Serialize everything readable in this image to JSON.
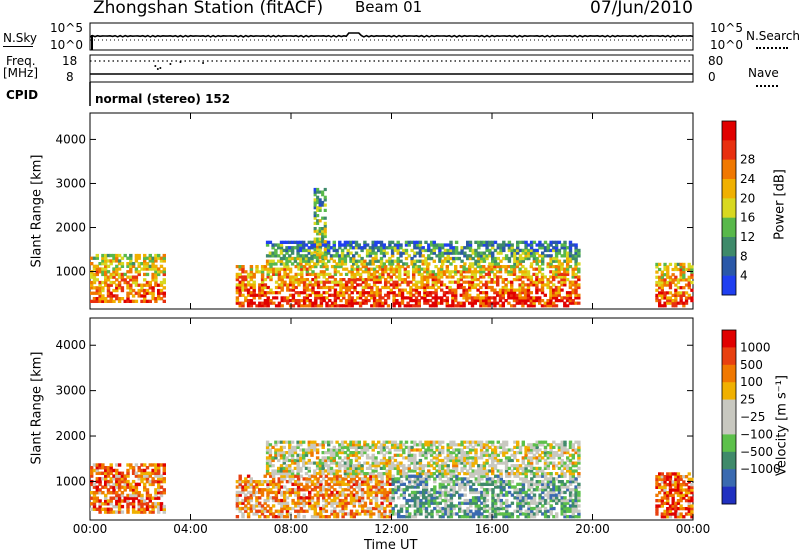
{
  "header": {
    "station": "Zhongshan Station (fitACF)",
    "beam": "Beam 01",
    "date": "07/Jun/2010"
  },
  "top_panels": {
    "nsky_label": "N.Sky",
    "nsky_ticks": [
      "10^5",
      "10^0"
    ],
    "nsearch_label": "N.Search",
    "nsearch_ticks": [
      "10^5",
      "10^0"
    ],
    "freq_label": "Freq.",
    "freq_unit": "[MHz]",
    "freq_ticks": [
      "18",
      "8"
    ],
    "nave_label": "Nave",
    "nave_ticks": [
      "80",
      "0"
    ],
    "cpid_label": "CPID",
    "cpid_text": "normal (stereo) 152"
  },
  "colors": {
    "power_scale": [
      "#1f3ff0",
      "#2a58a8",
      "#3e8a6a",
      "#58b84a",
      "#d8d820",
      "#f0b000",
      "#f07800",
      "#e83010",
      "#e00000"
    ],
    "velocity_scale": [
      "#2030c0",
      "#3a6ab0",
      "#3f8a6a",
      "#5cc04a",
      "#c8c8c0",
      "#c8c8c0",
      "#f0b000",
      "#f07800",
      "#e84010",
      "#e00000"
    ]
  },
  "chart_data": [
    {
      "type": "heatmap",
      "title": "",
      "xlabel": "",
      "ylabel": "Slant Range [km]",
      "ylim": [
        150,
        4600
      ],
      "y_ticks": [
        "1000",
        "2000",
        "3000",
        "4000"
      ],
      "x_ticks": [],
      "colorbar_label": "Power [dB]",
      "colorbar_ticks": [
        "4",
        "8",
        "12",
        "16",
        "20",
        "24",
        "28"
      ],
      "regions": [
        {
          "t0": 0.0,
          "t1": 3.0,
          "r0": 300,
          "r1": 1400,
          "level": 0.45
        },
        {
          "t0": 5.8,
          "t1": 19.5,
          "r0": 200,
          "r1": 1150,
          "level": 0.55
        },
        {
          "t0": 7.0,
          "t1": 19.5,
          "r0": 1150,
          "r1": 1700,
          "level": 0.15
        },
        {
          "t0": 8.9,
          "t1": 9.4,
          "r0": 1300,
          "r1": 2900,
          "level": 0.2
        },
        {
          "t0": 22.5,
          "t1": 24.0,
          "r0": 200,
          "r1": 1200,
          "level": 0.5
        }
      ]
    },
    {
      "type": "heatmap",
      "title": "",
      "xlabel": "Time UT",
      "ylabel": "Slant Range [km]",
      "ylim": [
        150,
        4600
      ],
      "y_ticks": [
        "1000",
        "2000",
        "3000",
        "4000"
      ],
      "x_ticks": [
        "00:00",
        "04:00",
        "08:00",
        "12:00",
        "16:00",
        "20:00",
        "00:00"
      ],
      "colorbar_label": "Velocity [m s⁻¹]",
      "colorbar_ticks": [
        "1000",
        "500",
        "100",
        "25",
        "−25",
        "−100",
        "−500",
        "−1000"
      ],
      "regions": [
        {
          "t0": 0.0,
          "t1": 3.0,
          "r0": 300,
          "r1": 1400,
          "level": 0.75
        },
        {
          "t0": 5.8,
          "t1": 12.0,
          "r0": 200,
          "r1": 1150,
          "level": 0.7
        },
        {
          "t0": 12.0,
          "t1": 19.5,
          "r0": 200,
          "r1": 1150,
          "level": 0.35
        },
        {
          "t0": 7.0,
          "t1": 19.5,
          "r0": 1150,
          "r1": 1900,
          "level": 0.5
        },
        {
          "t0": 22.5,
          "t1": 24.0,
          "r0": 200,
          "r1": 1200,
          "level": 0.8
        }
      ]
    }
  ]
}
